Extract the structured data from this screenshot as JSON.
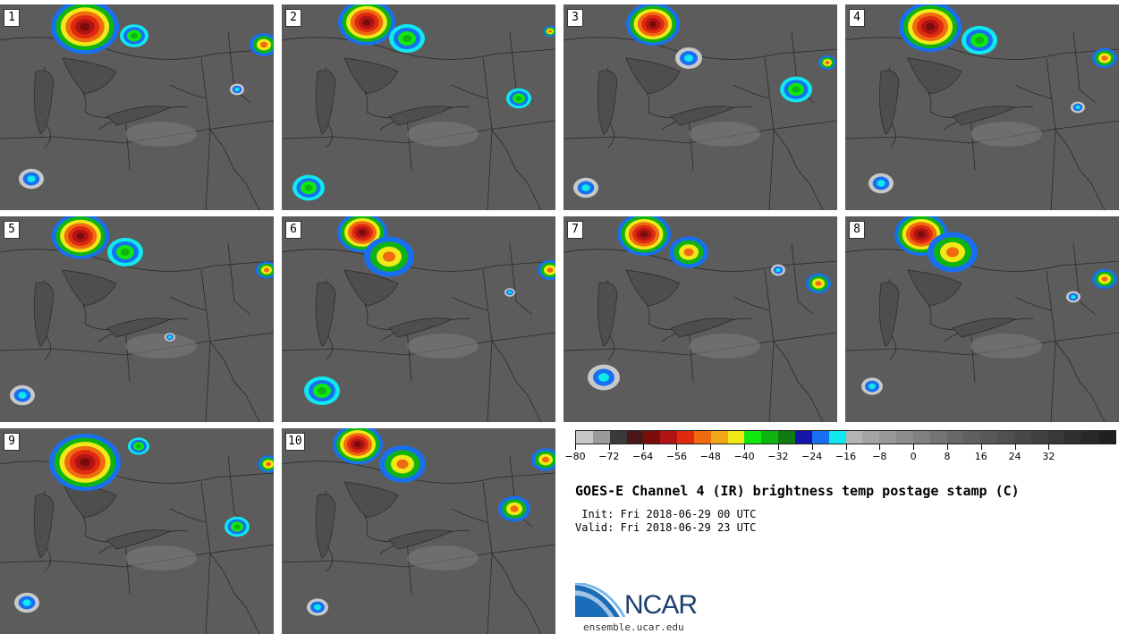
{
  "panels": [
    {
      "label": "1",
      "storms": [
        {
          "cx": 95,
          "cy": 25,
          "r": 38,
          "sev": 3
        },
        {
          "cx": 150,
          "cy": 35,
          "r": 16,
          "sev": 1
        },
        {
          "cx": 295,
          "cy": 45,
          "r": 16,
          "sev": 2
        },
        {
          "cx": 265,
          "cy": 95,
          "r": 8,
          "sev": 0
        },
        {
          "cx": 35,
          "cy": 195,
          "r": 14,
          "sev": 0
        }
      ]
    },
    {
      "label": "2",
      "storms": [
        {
          "cx": 95,
          "cy": 20,
          "r": 32,
          "sev": 3
        },
        {
          "cx": 140,
          "cy": 38,
          "r": 20,
          "sev": 1
        },
        {
          "cx": 265,
          "cy": 105,
          "r": 14,
          "sev": 1
        },
        {
          "cx": 30,
          "cy": 205,
          "r": 18,
          "sev": 1
        },
        {
          "cx": 300,
          "cy": 30,
          "r": 8,
          "sev": 2
        }
      ]
    },
    {
      "label": "3",
      "storms": [
        {
          "cx": 100,
          "cy": 22,
          "r": 30,
          "sev": 3
        },
        {
          "cx": 140,
          "cy": 60,
          "r": 15,
          "sev": 0
        },
        {
          "cx": 260,
          "cy": 95,
          "r": 18,
          "sev": 1
        },
        {
          "cx": 295,
          "cy": 65,
          "r": 10,
          "sev": 2
        },
        {
          "cx": 25,
          "cy": 205,
          "r": 14,
          "sev": 0
        }
      ]
    },
    {
      "label": "4",
      "storms": [
        {
          "cx": 95,
          "cy": 25,
          "r": 35,
          "sev": 3
        },
        {
          "cx": 150,
          "cy": 40,
          "r": 20,
          "sev": 1
        },
        {
          "cx": 290,
          "cy": 60,
          "r": 14,
          "sev": 2
        },
        {
          "cx": 260,
          "cy": 115,
          "r": 8,
          "sev": 0
        },
        {
          "cx": 40,
          "cy": 200,
          "r": 14,
          "sev": 0
        }
      ]
    },
    {
      "label": "5",
      "storms": [
        {
          "cx": 90,
          "cy": 22,
          "r": 32,
          "sev": 3
        },
        {
          "cx": 140,
          "cy": 40,
          "r": 20,
          "sev": 1
        },
        {
          "cx": 298,
          "cy": 60,
          "r": 12,
          "sev": 2
        },
        {
          "cx": 190,
          "cy": 135,
          "r": 6,
          "sev": 0
        },
        {
          "cx": 25,
          "cy": 200,
          "r": 14,
          "sev": 0
        }
      ]
    },
    {
      "label": "6",
      "storms": [
        {
          "cx": 90,
          "cy": 18,
          "r": 28,
          "sev": 3
        },
        {
          "cx": 120,
          "cy": 45,
          "r": 28,
          "sev": 2
        },
        {
          "cx": 300,
          "cy": 60,
          "r": 14,
          "sev": 2
        },
        {
          "cx": 45,
          "cy": 195,
          "r": 20,
          "sev": 1
        },
        {
          "cx": 255,
          "cy": 85,
          "r": 6,
          "sev": 0
        }
      ]
    },
    {
      "label": "7",
      "storms": [
        {
          "cx": 90,
          "cy": 20,
          "r": 30,
          "sev": 3
        },
        {
          "cx": 140,
          "cy": 40,
          "r": 22,
          "sev": 2
        },
        {
          "cx": 285,
          "cy": 75,
          "r": 14,
          "sev": 2
        },
        {
          "cx": 45,
          "cy": 180,
          "r": 18,
          "sev": 0
        },
        {
          "cx": 240,
          "cy": 60,
          "r": 8,
          "sev": 0
        }
      ]
    },
    {
      "label": "8",
      "storms": [
        {
          "cx": 85,
          "cy": 20,
          "r": 30,
          "sev": 3
        },
        {
          "cx": 120,
          "cy": 40,
          "r": 28,
          "sev": 2
        },
        {
          "cx": 290,
          "cy": 70,
          "r": 14,
          "sev": 2
        },
        {
          "cx": 255,
          "cy": 90,
          "r": 8,
          "sev": 0
        },
        {
          "cx": 30,
          "cy": 190,
          "r": 12,
          "sev": 0
        }
      ]
    },
    {
      "label": "9",
      "storms": [
        {
          "cx": 95,
          "cy": 38,
          "r": 40,
          "sev": 3
        },
        {
          "cx": 155,
          "cy": 20,
          "r": 12,
          "sev": 1
        },
        {
          "cx": 265,
          "cy": 110,
          "r": 14,
          "sev": 1
        },
        {
          "cx": 300,
          "cy": 40,
          "r": 12,
          "sev": 2
        },
        {
          "cx": 30,
          "cy": 195,
          "r": 14,
          "sev": 0
        }
      ]
    },
    {
      "label": "10",
      "storms": [
        {
          "cx": 85,
          "cy": 18,
          "r": 28,
          "sev": 3
        },
        {
          "cx": 135,
          "cy": 40,
          "r": 26,
          "sev": 2
        },
        {
          "cx": 260,
          "cy": 90,
          "r": 18,
          "sev": 2
        },
        {
          "cx": 295,
          "cy": 35,
          "r": 16,
          "sev": 2
        },
        {
          "cx": 40,
          "cy": 200,
          "r": 12,
          "sev": 0
        }
      ]
    }
  ],
  "colorbar": {
    "colors": [
      "#c8c8c8",
      "#9a9a9a",
      "#3a3a3a",
      "#4a1818",
      "#7a0c0c",
      "#b01414",
      "#e02a10",
      "#f06a10",
      "#f0a818",
      "#f0e818",
      "#10e810",
      "#10b410",
      "#107c10",
      "#1414a8",
      "#1870f0",
      "#10e8f0",
      "#b4b4b4",
      "#a4a4a4",
      "#989898",
      "#8c8c8c",
      "#808080",
      "#747474",
      "#686868",
      "#606060",
      "#585858",
      "#505050",
      "#484848",
      "#404040",
      "#383838",
      "#303030",
      "#282828",
      "#202020"
    ],
    "ticks": [
      "−80",
      "−72",
      "−64",
      "−56",
      "−48",
      "−40",
      "−32",
      "−24",
      "−16",
      "−8",
      "0",
      "8",
      "16",
      "24",
      "32"
    ],
    "tick_values": [
      -80,
      -72,
      -64,
      -56,
      -48,
      -40,
      -32,
      -24,
      -16,
      -8,
      0,
      8,
      16,
      24,
      32
    ],
    "min": -80,
    "max": 48
  },
  "title": "GOES-E Channel 4 (IR) brightness temp postage stamp (C)",
  "init": " Init: Fri 2018-06-29 00 UTC",
  "valid": "Valid: Fri 2018-06-29 23 UTC",
  "logo_text": "NCAR",
  "site": "ensemble.ucar.edu"
}
